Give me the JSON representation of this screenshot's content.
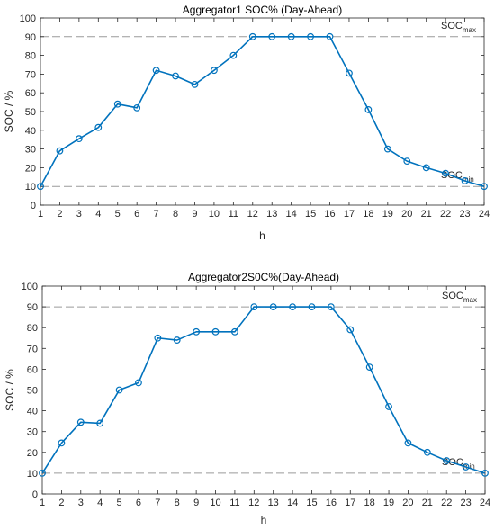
{
  "colors": {
    "series": "#0072BD",
    "reference": "#9a9a9a",
    "axis": "#262626"
  },
  "chart_data": [
    {
      "type": "line",
      "title": "Aggregator1 SOC%   (Day-Ahead)",
      "xlabel": "h",
      "ylabel": "SOC / %",
      "xlim": [
        1,
        24
      ],
      "ylim": [
        0,
        100
      ],
      "xticks": [
        "1",
        "2",
        "3",
        "4",
        "5",
        "6",
        "7",
        "8",
        "9",
        "10",
        "11",
        "12",
        "13",
        "14",
        "15",
        "16",
        "17",
        "18",
        "19",
        "20",
        "21",
        "22",
        "23",
        "24"
      ],
      "yticks": [
        "0",
        "10",
        "20",
        "30",
        "40",
        "50",
        "60",
        "70",
        "80",
        "90",
        "100"
      ],
      "grid": false,
      "x": [
        1,
        2,
        3,
        4,
        5,
        6,
        7,
        8,
        9,
        10,
        11,
        12,
        13,
        14,
        15,
        16,
        17,
        18,
        19,
        20,
        21,
        22,
        23,
        24
      ],
      "series": [
        {
          "values": [
            10,
            29,
            35.5,
            41.5,
            54,
            52,
            72,
            69,
            64.5,
            72,
            80,
            90,
            90,
            90,
            90,
            90,
            70.5,
            51,
            30,
            23.5,
            20,
            17,
            13,
            10
          ]
        }
      ],
      "reference_lines": [
        {
          "y": 90,
          "label": "SOC",
          "sub": "max"
        },
        {
          "y": 10,
          "label": "SOC",
          "sub": "min"
        }
      ]
    },
    {
      "type": "line",
      "title": "Aggregator2S0C%(Day-Ahead)",
      "xlabel": "h",
      "ylabel": "SOC / %",
      "xlim": [
        1,
        24
      ],
      "ylim": [
        0,
        100
      ],
      "xticks": [
        "1",
        "2",
        "3",
        "4",
        "5",
        "6",
        "7",
        "8",
        "9",
        "10",
        "11",
        "12",
        "13",
        "14",
        "15",
        "16",
        "17",
        "18",
        "19",
        "20",
        "21",
        "22",
        "23",
        "24"
      ],
      "yticks": [
        "0",
        "10",
        "20",
        "30",
        "40",
        "50",
        "60",
        "70",
        "80",
        "90",
        "100"
      ],
      "grid": false,
      "x": [
        1,
        2,
        3,
        4,
        5,
        6,
        7,
        8,
        9,
        10,
        11,
        12,
        13,
        14,
        15,
        16,
        17,
        18,
        19,
        20,
        21,
        22,
        23,
        24
      ],
      "series": [
        {
          "values": [
            10,
            24.5,
            34.5,
            34,
            50,
            53.5,
            75,
            74,
            78,
            78,
            78,
            90,
            90,
            90,
            90,
            90,
            79,
            61,
            42,
            24.5,
            20,
            16,
            13,
            10
          ]
        }
      ],
      "reference_lines": [
        {
          "y": 90,
          "label": "SOC",
          "sub": "max"
        },
        {
          "y": 10,
          "label": "SOC",
          "sub": "min"
        }
      ]
    }
  ]
}
